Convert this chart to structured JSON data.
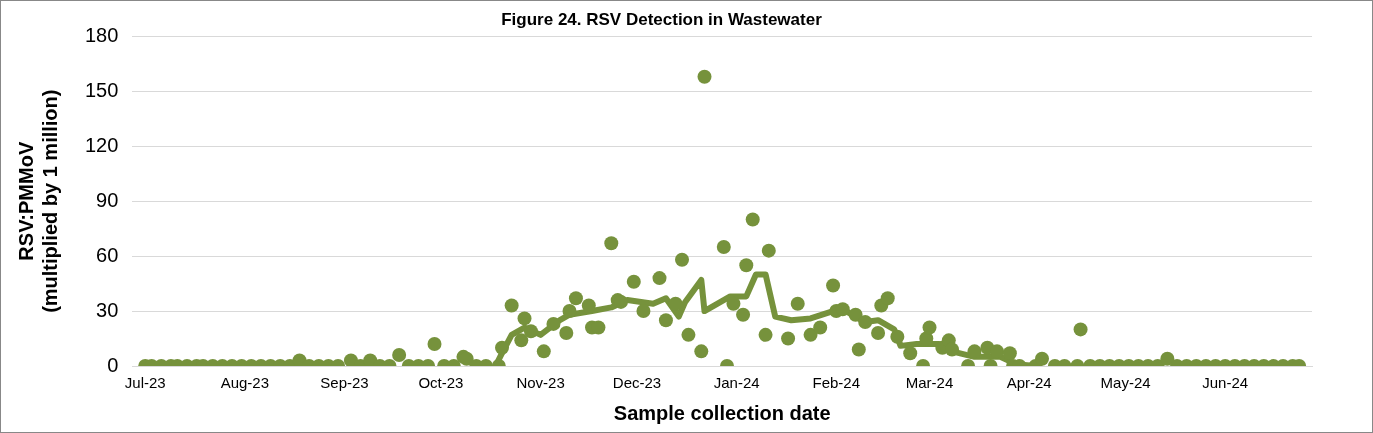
{
  "chart_data": {
    "type": "scatter",
    "title": "Figure 24. RSV Detection in Wastewater",
    "xlabel": "Sample collection date",
    "ylabel": "RSV:PMMoV\n(multiplied by 1 million)",
    "xlim": [
      "2023-06-27",
      "2024-06-28"
    ],
    "xticks": [
      {
        "value": "2023-07-01",
        "label": "Jul-23"
      },
      {
        "value": "2023-08-01",
        "label": "Aug-23"
      },
      {
        "value": "2023-09-01",
        "label": "Sep-23"
      },
      {
        "value": "2023-10-01",
        "label": "Oct-23"
      },
      {
        "value": "2023-11-01",
        "label": "Nov-23"
      },
      {
        "value": "2023-12-01",
        "label": "Dec-23"
      },
      {
        "value": "2024-01-01",
        "label": "Jan-24"
      },
      {
        "value": "2024-02-01",
        "label": "Feb-24"
      },
      {
        "value": "2024-03-01",
        "label": "Mar-24"
      },
      {
        "value": "2024-04-01",
        "label": "Apr-24"
      },
      {
        "value": "2024-05-01",
        "label": "May-24"
      },
      {
        "value": "2024-06-01",
        "label": "Jun-24"
      }
    ],
    "ylim": [
      0,
      180
    ],
    "yticks": [
      0,
      30,
      60,
      90,
      120,
      150,
      180
    ],
    "grid": "y",
    "legend": false,
    "series": [
      {
        "marker": "circle",
        "color": "#76923c",
        "x": [
          "2023-07-01",
          "2023-07-03",
          "2023-07-06",
          "2023-07-09",
          "2023-07-11",
          "2023-07-14",
          "2023-07-17",
          "2023-07-19",
          "2023-07-22",
          "2023-07-25",
          "2023-07-28",
          "2023-07-31",
          "2023-08-03",
          "2023-08-06",
          "2023-08-09",
          "2023-08-12",
          "2023-08-15",
          "2023-08-18",
          "2023-08-21",
          "2023-08-24",
          "2023-08-27",
          "2023-08-30",
          "2023-09-03",
          "2023-09-06",
          "2023-09-09",
          "2023-09-12",
          "2023-09-15",
          "2023-09-18",
          "2023-09-21",
          "2023-09-24",
          "2023-09-27",
          "2023-09-29",
          "2023-10-02",
          "2023-10-05",
          "2023-10-08",
          "2023-10-09",
          "2023-10-12",
          "2023-10-15",
          "2023-10-19",
          "2023-10-20",
          "2023-10-23",
          "2023-10-26",
          "2023-10-27",
          "2023-10-29",
          "2023-11-02",
          "2023-11-05",
          "2023-11-09",
          "2023-11-10",
          "2023-11-12",
          "2023-11-16",
          "2023-11-17",
          "2023-11-19",
          "2023-11-23",
          "2023-11-25",
          "2023-11-26",
          "2023-11-30",
          "2023-12-03",
          "2023-12-08",
          "2023-12-10",
          "2023-12-13",
          "2023-12-15",
          "2023-12-17",
          "2023-12-21",
          "2023-12-22",
          "2023-12-28",
          "2023-12-29",
          "2023-12-31",
          "2024-01-03",
          "2024-01-04",
          "2024-01-06",
          "2024-01-10",
          "2024-01-11",
          "2024-01-17",
          "2024-01-20",
          "2024-01-24",
          "2024-01-27",
          "2024-01-31",
          "2024-02-01",
          "2024-02-03",
          "2024-02-07",
          "2024-02-08",
          "2024-02-10",
          "2024-02-14",
          "2024-02-15",
          "2024-02-17",
          "2024-02-20",
          "2024-02-24",
          "2024-02-28",
          "2024-02-29",
          "2024-03-01",
          "2024-03-05",
          "2024-03-07",
          "2024-03-08",
          "2024-03-13",
          "2024-03-15",
          "2024-03-19",
          "2024-03-20",
          "2024-03-22",
          "2024-03-26",
          "2024-03-27",
          "2024-03-29",
          "2024-04-03",
          "2024-04-05",
          "2024-04-09",
          "2024-04-12",
          "2024-04-16",
          "2024-04-17",
          "2024-04-20",
          "2024-04-23",
          "2024-04-26",
          "2024-04-29",
          "2024-05-02",
          "2024-05-05",
          "2024-05-08",
          "2024-05-11",
          "2024-05-14",
          "2024-05-17",
          "2024-05-20",
          "2024-05-23",
          "2024-05-26",
          "2024-05-29",
          "2024-06-01",
          "2024-06-04",
          "2024-06-07",
          "2024-06-10",
          "2024-06-13",
          "2024-06-16",
          "2024-06-19",
          "2024-06-22",
          "2024-06-24"
        ],
        "values": [
          0,
          0,
          0,
          0,
          0,
          0,
          0,
          0,
          0,
          0,
          0,
          0,
          0,
          0,
          0,
          0,
          0,
          3,
          0,
          0,
          0,
          0,
          3,
          0,
          3,
          0,
          0,
          6,
          0,
          0,
          0,
          12,
          0,
          0,
          5,
          4,
          0,
          0,
          0,
          10,
          33,
          14,
          26,
          19,
          8,
          23,
          18,
          30,
          37,
          33,
          21,
          21,
          67,
          36,
          35,
          46,
          30,
          48,
          25,
          34,
          58,
          17,
          8,
          158,
          65,
          0,
          34,
          28,
          55,
          80,
          17,
          63,
          15,
          34,
          17,
          21,
          44,
          30,
          31,
          28,
          9,
          24,
          18,
          33,
          37,
          16,
          7,
          0,
          15,
          21,
          10,
          14,
          9,
          0,
          8,
          10,
          0,
          8,
          7,
          0,
          0,
          0,
          4,
          0,
          0,
          0,
          20,
          0,
          0,
          0,
          0,
          0,
          0,
          0,
          0,
          4,
          0,
          0,
          0,
          0,
          0,
          0,
          0,
          0,
          0,
          0,
          0,
          0,
          0,
          0
        ]
      },
      {
        "type": "line",
        "marker": "none",
        "color": "#76923c",
        "x": [
          "2023-10-18",
          "2023-10-20",
          "2023-10-23",
          "2023-10-27",
          "2023-11-01",
          "2023-11-07",
          "2023-11-10",
          "2023-11-17",
          "2023-11-23",
          "2023-11-28",
          "2023-12-06",
          "2023-12-10",
          "2023-12-14",
          "2023-12-16",
          "2023-12-21",
          "2023-12-22",
          "2023-12-30",
          "2024-01-04",
          "2024-01-07",
          "2024-01-10",
          "2024-01-13",
          "2024-01-18",
          "2024-01-24",
          "2024-01-31",
          "2024-02-04",
          "2024-02-10",
          "2024-02-14",
          "2024-02-19",
          "2024-02-21",
          "2024-02-26",
          "2024-03-04",
          "2024-03-08",
          "2024-03-15",
          "2024-03-23",
          "2024-03-28",
          "2024-04-03"
        ],
        "values": [
          0,
          7,
          17,
          21,
          17,
          25,
          28,
          30,
          32,
          36,
          34,
          37,
          27,
          35,
          47,
          30,
          38,
          38,
          50,
          50,
          27,
          25,
          26,
          30,
          30,
          24,
          25,
          20,
          11,
          12,
          12,
          8,
          5,
          5,
          1,
          0
        ]
      }
    ]
  }
}
